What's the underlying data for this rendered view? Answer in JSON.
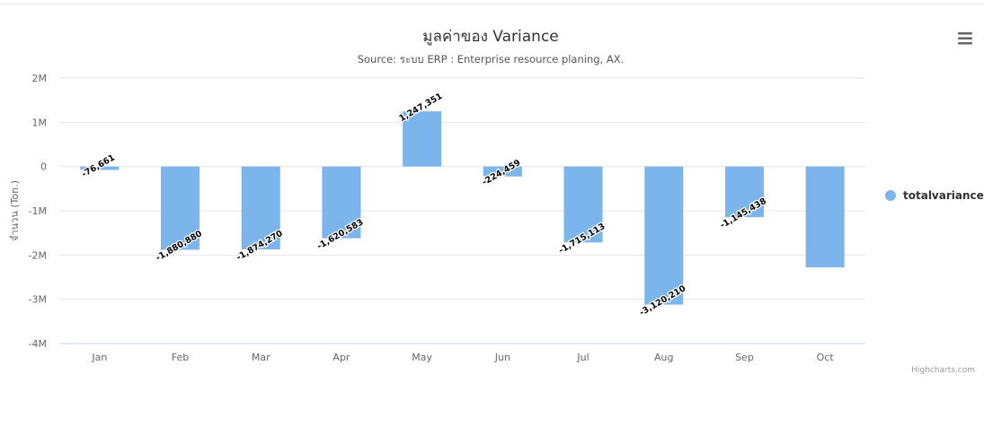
{
  "chart_data": {
    "type": "bar",
    "title": "มูลค่าของ Variance",
    "subtitle": "Source: ระบบ ERP : Enterprise resource planing, AX.",
    "ylabel": "จำนวน (Ton.)",
    "ylim": [
      -4000000,
      2000000
    ],
    "yticks": [
      2000000,
      1000000,
      0,
      -1000000,
      -2000000,
      -3000000,
      -4000000
    ],
    "ytick_labels": [
      "2M",
      "1M",
      "0",
      "-1M",
      "-2M",
      "-3M",
      "-4M"
    ],
    "categories": [
      "Jan",
      "Feb",
      "Mar",
      "Apr",
      "May",
      "Jun",
      "Jul",
      "Aug",
      "Sep",
      "Oct"
    ],
    "series": [
      {
        "name": "totalvariance",
        "color": "#7cb5ec",
        "values": [
          -76661,
          -1880880,
          -1874270,
          -1620583,
          1247351,
          -224459,
          -1715113,
          -3120210,
          -1145438,
          -2280000
        ],
        "data_labels": [
          "-76,661",
          "-1,880,880",
          "-1,874,270",
          "-1,620,583",
          "1,247,351",
          "-224,459",
          "-1,715,113",
          "-3,120,210",
          "-1,145,438",
          ""
        ]
      }
    ],
    "grid": true,
    "legend_position": "right"
  },
  "credits": "Highcharts.com",
  "menu_icon": "hamburger-menu-icon"
}
